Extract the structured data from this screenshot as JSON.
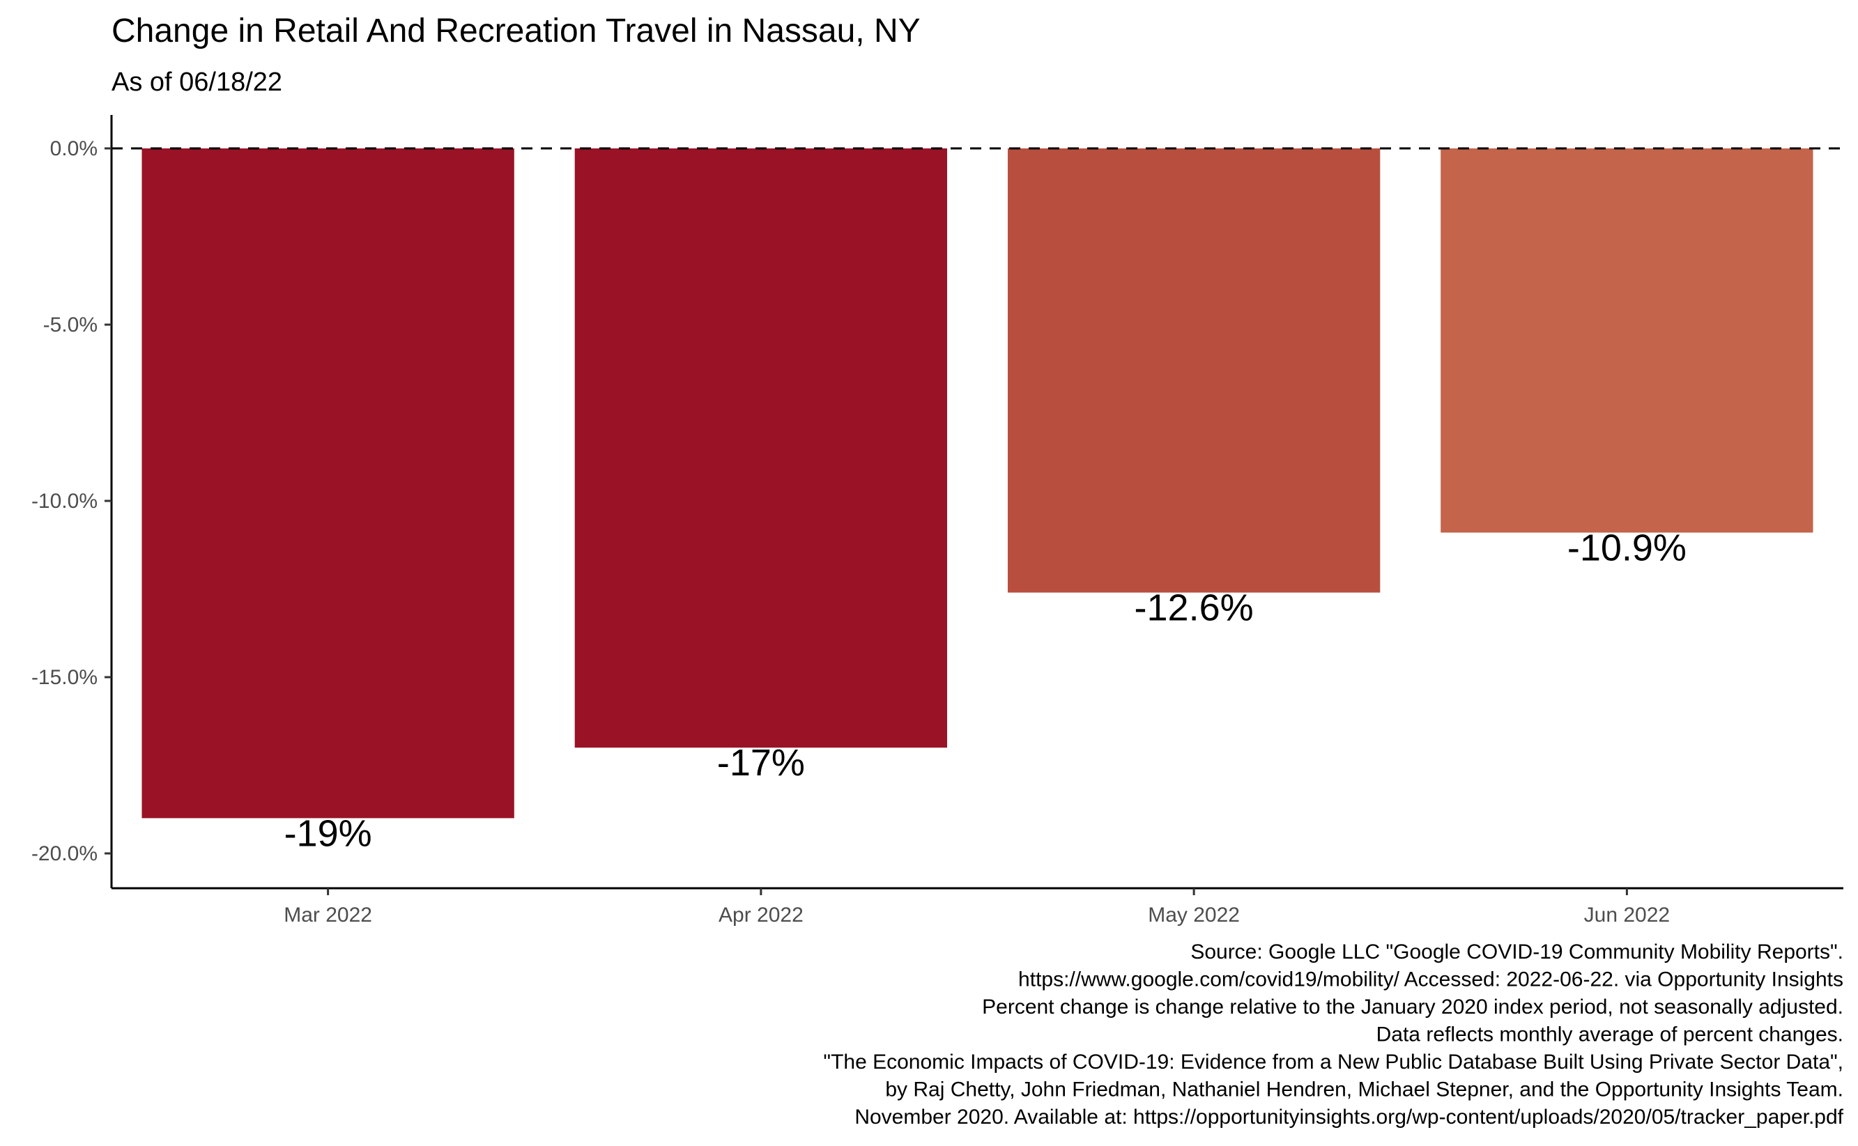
{
  "chart_data": {
    "type": "bar",
    "title": "Change in Retail And Recreation Travel in Nassau, NY",
    "subtitle": "As of 06/18/22",
    "categories": [
      "Mar 2022",
      "Apr 2022",
      "May 2022",
      "Jun 2022"
    ],
    "values": [
      -19,
      -17,
      -12.6,
      -10.9
    ],
    "value_labels": [
      "-19%",
      "-17%",
      "-12.6%",
      "-10.9%"
    ],
    "bar_colors": [
      "#9a1226",
      "#9a1226",
      "#b84f3e",
      "#c4644b"
    ],
    "y_ticks": [
      0,
      -5,
      -10,
      -15,
      -20
    ],
    "y_tick_labels": [
      "0.0%",
      "-5.0%",
      "-10.0%",
      "-15.0%",
      "-20.0%"
    ],
    "ylim": [
      -21,
      1
    ],
    "reference_line": 0,
    "xlabel": "",
    "ylabel": "",
    "grid": false,
    "legend": "none",
    "caption": [
      "Source: Google LLC \"Google COVID-19 Community Mobility Reports\".",
      "https://www.google.com/covid19/mobility/ Accessed: 2022-06-22. via Opportunity Insights",
      "Percent change is change relative to the January 2020 index period, not seasonally adjusted.",
      "Data reflects monthly average of percent changes.",
      "\"The Economic Impacts of COVID-19: Evidence from a New Public Database Built Using Private Sector Data\",",
      "by Raj Chetty, John Friedman, Nathaniel Hendren, Michael Stepner, and the Opportunity Insights Team.",
      "November 2020. Available at: https://opportunityinsights.org/wp-content/uploads/2020/05/tracker_paper.pdf"
    ]
  }
}
